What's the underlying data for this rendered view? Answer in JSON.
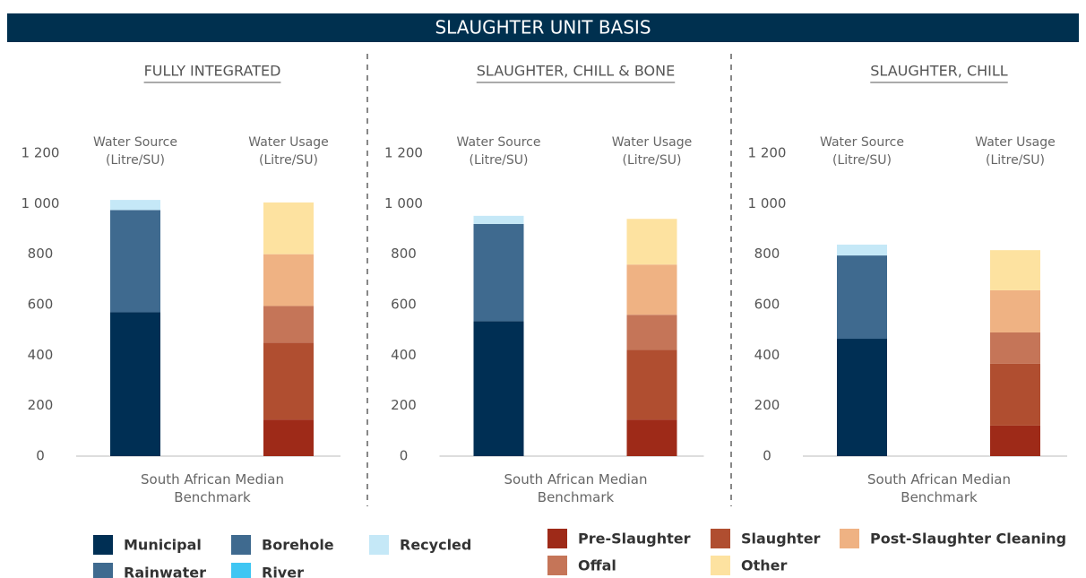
{
  "header": "SLAUGHTER UNIT BASIS",
  "chart_data": [
    {
      "type": "stacked-bar",
      "title": "FULLY INTEGRATED",
      "xlabel": "South African Median Benchmark",
      "categories": [
        "Water Source (Litre/SU)",
        "Water Usage (Litre/SU)"
      ],
      "ylim": [
        0,
        1200
      ],
      "yticks": [
        0,
        200,
        400,
        600,
        800,
        {
          "value": 1000,
          "label": "1 000"
        },
        {
          "value": 1200,
          "label": "1 200"
        }
      ],
      "grid": false,
      "series": [
        {
          "name": "Municipal",
          "color": "#002f54",
          "values": [
            570,
            null
          ]
        },
        {
          "name": "Borehole",
          "color": "#3f6a8f",
          "values": [
            405,
            null
          ]
        },
        {
          "name": "Recycled",
          "color": "#c5e8f7",
          "values": [
            40,
            null
          ]
        },
        {
          "name": "Rainwater",
          "color": "#3f6a8f",
          "values": [
            0,
            null
          ]
        },
        {
          "name": "River",
          "color": "#3fc6f3",
          "values": [
            0,
            null
          ]
        },
        {
          "name": "Pre-Slaughter",
          "color": "#9e2a18",
          "values": [
            null,
            145
          ]
        },
        {
          "name": "Slaughter",
          "color": "#b04e30",
          "values": [
            null,
            305
          ]
        },
        {
          "name": "Offal",
          "color": "#c57558",
          "values": [
            null,
            145
          ]
        },
        {
          "name": "Post-Slaughter Cleaning",
          "color": "#efb283",
          "values": [
            null,
            205
          ]
        },
        {
          "name": "Other",
          "color": "#fde2a0",
          "values": [
            null,
            205
          ]
        }
      ]
    },
    {
      "type": "stacked-bar",
      "title": "SLAUGHTER, CHILL & BONE",
      "xlabel": "South African Median Benchmark",
      "categories": [
        "Water Source (Litre/SU)",
        "Water Usage (Litre/SU)"
      ],
      "ylim": [
        0,
        1200
      ],
      "yticks": [
        0,
        200,
        400,
        600,
        800,
        {
          "value": 1000,
          "label": "1 000"
        },
        {
          "value": 1200,
          "label": "1 200"
        }
      ],
      "grid": false,
      "series": [
        {
          "name": "Municipal",
          "color": "#002f54",
          "values": [
            535,
            null
          ]
        },
        {
          "name": "Borehole",
          "color": "#3f6a8f",
          "values": [
            385,
            null
          ]
        },
        {
          "name": "Recycled",
          "color": "#c5e8f7",
          "values": [
            32,
            null
          ]
        },
        {
          "name": "Rainwater",
          "color": "#3f6a8f",
          "values": [
            0,
            null
          ]
        },
        {
          "name": "River",
          "color": "#3fc6f3",
          "values": [
            0,
            null
          ]
        },
        {
          "name": "Pre-Slaughter",
          "color": "#9e2a18",
          "values": [
            null,
            145
          ]
        },
        {
          "name": "Slaughter",
          "color": "#b04e30",
          "values": [
            null,
            276
          ]
        },
        {
          "name": "Offal",
          "color": "#c57558",
          "values": [
            null,
            139
          ]
        },
        {
          "name": "Post-Slaughter Cleaning",
          "color": "#efb283",
          "values": [
            null,
            199
          ]
        },
        {
          "name": "Other",
          "color": "#fde2a0",
          "values": [
            null,
            181
          ]
        }
      ]
    },
    {
      "type": "stacked-bar",
      "title": "SLAUGHTER, CHILL",
      "xlabel": "South African Median Benchmark",
      "categories": [
        "Water Source (Litre/SU)",
        "Water Usage (Litre/SU)"
      ],
      "ylim": [
        0,
        1200
      ],
      "yticks": [
        0,
        200,
        400,
        600,
        800,
        {
          "value": 1000,
          "label": "1 000"
        },
        {
          "value": 1200,
          "label": "1 200"
        }
      ],
      "grid": false,
      "series": [
        {
          "name": "Municipal",
          "color": "#002f54",
          "values": [
            465,
            null
          ]
        },
        {
          "name": "Borehole",
          "color": "#3f6a8f",
          "values": [
            330,
            null
          ]
        },
        {
          "name": "Recycled",
          "color": "#c5e8f7",
          "values": [
            43,
            null
          ]
        },
        {
          "name": "Rainwater",
          "color": "#3f6a8f",
          "values": [
            0,
            null
          ]
        },
        {
          "name": "River",
          "color": "#3fc6f3",
          "values": [
            0,
            null
          ]
        },
        {
          "name": "Pre-Slaughter",
          "color": "#9e2a18",
          "values": [
            null,
            121
          ]
        },
        {
          "name": "Slaughter",
          "color": "#b04e30",
          "values": [
            null,
            245
          ]
        },
        {
          "name": "Offal",
          "color": "#c57558",
          "values": [
            null,
            124
          ]
        },
        {
          "name": "Post-Slaughter Cleaning",
          "color": "#efb283",
          "values": [
            null,
            167
          ]
        },
        {
          "name": "Other",
          "color": "#fde2a0",
          "values": [
            null,
            159
          ]
        }
      ]
    }
  ]
}
